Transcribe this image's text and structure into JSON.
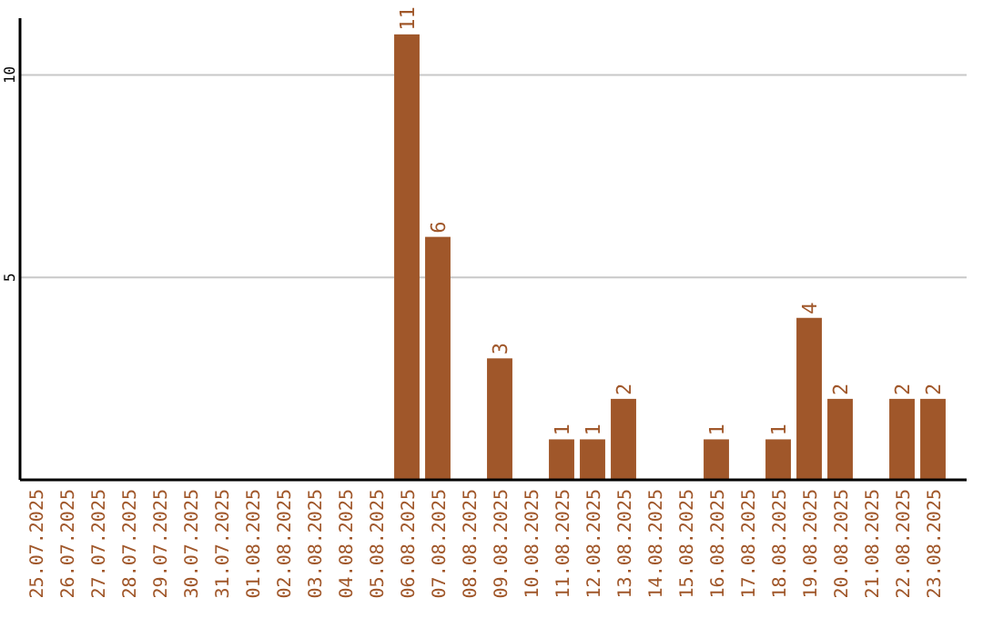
{
  "chart_data": {
    "type": "bar",
    "categories": [
      "25.07.2025",
      "26.07.2025",
      "27.07.2025",
      "28.07.2025",
      "29.07.2025",
      "30.07.2025",
      "31.07.2025",
      "01.08.2025",
      "02.08.2025",
      "03.08.2025",
      "04.08.2025",
      "05.08.2025",
      "06.08.2025",
      "07.08.2025",
      "08.08.2025",
      "09.08.2025",
      "10.08.2025",
      "11.08.2025",
      "12.08.2025",
      "13.08.2025",
      "14.08.2025",
      "15.08.2025",
      "16.08.2025",
      "17.08.2025",
      "18.08.2025",
      "19.08.2025",
      "20.08.2025",
      "21.08.2025",
      "22.08.2025",
      "23.08.2025"
    ],
    "values": [
      0,
      0,
      0,
      0,
      0,
      0,
      0,
      0,
      0,
      0,
      0,
      0,
      11,
      6,
      0,
      3,
      0,
      1,
      1,
      2,
      0,
      0,
      1,
      0,
      1,
      4,
      2,
      0,
      2,
      2
    ],
    "value_labels": [
      null,
      null,
      null,
      null,
      null,
      null,
      null,
      null,
      null,
      null,
      null,
      null,
      "11",
      "6",
      null,
      "3",
      null,
      "1",
      "1",
      "2",
      null,
      null,
      "1",
      null,
      "1",
      "4",
      "2",
      null,
      "2",
      "2"
    ],
    "color": "#a0572a",
    "ylim": [
      0,
      11.4
    ],
    "yticks": [
      5,
      10
    ],
    "grid": "y"
  }
}
